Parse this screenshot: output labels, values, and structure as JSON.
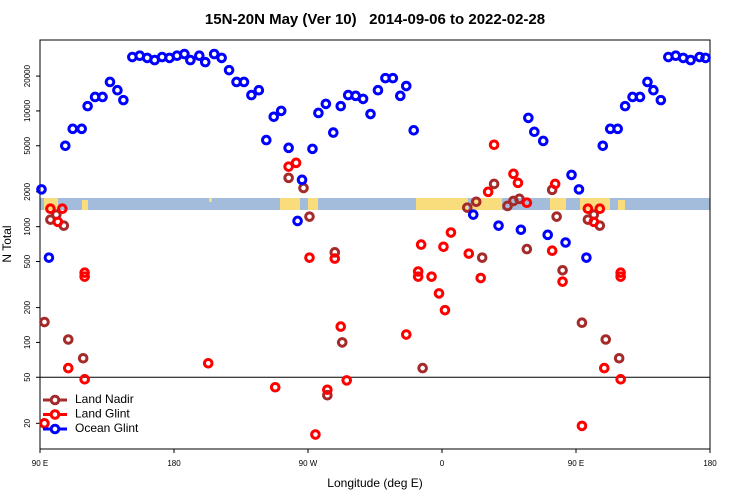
{
  "chart_data": {
    "type": "scatter",
    "title": "15N-20N May (Ver 10)   2014-09-06 to 2022-02-28",
    "x_label": "Longitude (deg E)",
    "y_label": "N Total",
    "log_y": true,
    "xlim": [
      90,
      540
    ],
    "ylim": [
      12,
      41000
    ],
    "xticks": [
      {
        "value": 90,
        "label": "90 E"
      },
      {
        "value": 180,
        "label": "180"
      },
      {
        "value": 270,
        "label": "90 W"
      },
      {
        "value": 360,
        "label": "0"
      },
      {
        "value": 450,
        "label": "90 E"
      },
      {
        "value": 540,
        "label": "180"
      }
    ],
    "yticks": [
      20,
      50,
      100,
      200,
      500,
      1000,
      2000,
      5000,
      10000,
      20000
    ],
    "hline": 50,
    "legend": "lower left",
    "series": [
      {
        "name": "Land Nadir",
        "color": "#a52a2a",
        "x": [
          93,
          97,
          101,
          106,
          109,
          119,
          257,
          267,
          271,
          288,
          293,
          283,
          347,
          377,
          383,
          387,
          395,
          404,
          408,
          412,
          417,
          434,
          437,
          441,
          454,
          458,
          462,
          466,
          470,
          479
        ],
        "values": [
          150,
          1150,
          1270,
          1020,
          106,
          73,
          2640,
          2160,
          1220,
          600,
          100,
          35,
          60,
          1460,
          1640,
          540,
          2340,
          1510,
          1670,
          1740,
          640,
          2080,
          1220,
          420,
          148,
          1150,
          1270,
          1020,
          106,
          73
        ]
      },
      {
        "name": "Land Glint",
        "color": "#ff0000",
        "x": [
          93,
          97,
          102,
          105,
          109,
          120,
          120,
          120,
          203,
          248,
          257,
          262,
          271,
          275,
          283,
          288,
          292,
          296,
          336,
          344,
          344,
          346,
          353,
          358,
          361,
          362,
          366,
          378,
          386,
          391,
          395,
          408,
          411,
          417,
          434,
          436,
          441,
          454,
          458,
          462,
          466,
          469,
          480,
          480,
          480
        ],
        "values": [
          20,
          1430,
          1100,
          1430,
          60,
          48,
          400,
          370,
          66,
          41,
          3300,
          3560,
          540,
          16,
          39,
          530,
          137,
          47,
          117,
          410,
          370,
          700,
          370,
          265,
          670,
          190,
          890,
          585,
          360,
          2000,
          5100,
          2860,
          2390,
          1610,
          620,
          2340,
          335,
          19,
          1430,
          1100,
          1430,
          60,
          48,
          400,
          370
        ]
      },
      {
        "name": "Ocean Glint",
        "color": "#0000ff",
        "x": [
          91,
          96,
          107,
          112,
          118,
          122,
          127,
          132,
          137,
          142,
          146,
          152,
          157,
          162,
          167,
          172,
          177,
          182,
          187,
          191,
          197,
          201,
          207,
          212,
          217,
          222,
          227,
          232,
          237,
          242,
          247,
          252,
          257,
          263,
          266,
          273,
          277,
          282,
          287,
          292,
          297,
          302,
          307,
          312,
          317,
          322,
          327,
          332,
          336,
          341,
          381,
          398,
          413,
          418,
          422,
          428,
          431,
          443,
          447,
          452,
          457,
          468,
          473,
          478,
          483,
          488,
          493,
          498,
          502,
          507,
          512,
          517,
          522,
          527,
          533,
          537
        ],
        "values": [
          2100,
          540,
          5000,
          7000,
          7000,
          11000,
          13200,
          13200,
          17800,
          15100,
          12400,
          29200,
          30000,
          28700,
          27500,
          29200,
          28700,
          30000,
          31000,
          27500,
          30000,
          26400,
          31000,
          28700,
          22500,
          17800,
          17800,
          13700,
          15100,
          5600,
          8900,
          10000,
          4800,
          1120,
          2540,
          4700,
          9600,
          11500,
          6500,
          11000,
          13700,
          13500,
          12700,
          9400,
          15100,
          19200,
          19200,
          13500,
          16400,
          6800,
          1270,
          1020,
          940,
          8700,
          6600,
          5500,
          850,
          730,
          2800,
          2100,
          540,
          5000,
          7000,
          7000,
          11000,
          13200,
          13200,
          17800,
          15100,
          12400,
          29200,
          30000,
          28700,
          27500,
          29200,
          28700
        ]
      }
    ]
  }
}
